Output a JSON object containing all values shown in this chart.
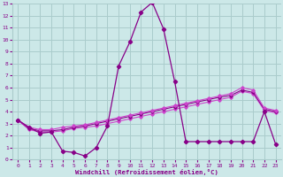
{
  "bg_color": "#cce8e8",
  "grid_color": "#aacccc",
  "line_color_dark": "#880088",
  "line_color_light": "#cc44cc",
  "xlabel": "Windchill (Refroidissement éolien,°C)",
  "xlim": [
    -0.5,
    23.5
  ],
  "ylim": [
    0,
    13
  ],
  "xticks": [
    0,
    1,
    2,
    3,
    4,
    5,
    6,
    7,
    8,
    9,
    10,
    11,
    12,
    13,
    14,
    15,
    16,
    17,
    18,
    19,
    20,
    21,
    22,
    23
  ],
  "yticks": [
    0,
    1,
    2,
    3,
    4,
    5,
    6,
    7,
    8,
    9,
    10,
    11,
    12,
    13
  ],
  "series1_x": [
    0,
    1,
    2,
    3,
    4,
    5,
    6,
    7,
    8,
    9,
    10,
    11,
    12,
    13,
    14,
    15,
    16,
    17,
    18,
    19,
    20,
    21,
    22,
    23
  ],
  "series1_y": [
    3.3,
    2.7,
    2.2,
    2.3,
    0.7,
    0.6,
    0.3,
    1.0,
    2.8,
    7.8,
    9.8,
    12.3,
    13.1,
    10.9,
    6.5,
    1.5,
    1.5,
    1.5,
    1.5,
    1.5,
    1.5,
    1.5,
    4.0,
    1.3
  ],
  "series2_x": [
    0,
    1,
    2,
    3,
    4,
    5,
    6,
    7,
    8,
    9,
    10,
    11,
    12,
    13,
    14,
    15,
    16,
    17,
    18,
    19,
    20,
    21,
    22,
    23
  ],
  "series2_y": [
    3.3,
    2.5,
    2.3,
    2.3,
    2.4,
    2.6,
    2.7,
    2.8,
    3.0,
    3.2,
    3.4,
    3.6,
    3.8,
    4.0,
    4.2,
    4.4,
    4.6,
    4.8,
    5.0,
    5.2,
    5.7,
    5.5,
    4.1,
    3.9
  ],
  "series3_x": [
    0,
    1,
    2,
    3,
    4,
    5,
    6,
    7,
    8,
    9,
    10,
    11,
    12,
    13,
    14,
    15,
    16,
    17,
    18,
    19,
    20,
    21,
    22,
    23
  ],
  "series3_y": [
    3.3,
    2.6,
    2.4,
    2.4,
    2.5,
    2.7,
    2.8,
    3.0,
    3.2,
    3.4,
    3.6,
    3.8,
    4.0,
    4.2,
    4.4,
    4.6,
    4.8,
    5.0,
    5.2,
    5.35,
    5.8,
    5.6,
    4.2,
    4.0
  ],
  "series4_x": [
    0,
    1,
    2,
    3,
    4,
    5,
    6,
    7,
    8,
    9,
    10,
    11,
    12,
    13,
    14,
    15,
    16,
    17,
    18,
    19,
    20,
    21,
    22,
    23
  ],
  "series4_y": [
    3.3,
    2.7,
    2.5,
    2.5,
    2.7,
    2.8,
    2.9,
    3.1,
    3.3,
    3.5,
    3.7,
    3.9,
    4.1,
    4.3,
    4.5,
    4.7,
    4.9,
    5.1,
    5.3,
    5.5,
    6.0,
    5.8,
    4.3,
    4.1
  ]
}
